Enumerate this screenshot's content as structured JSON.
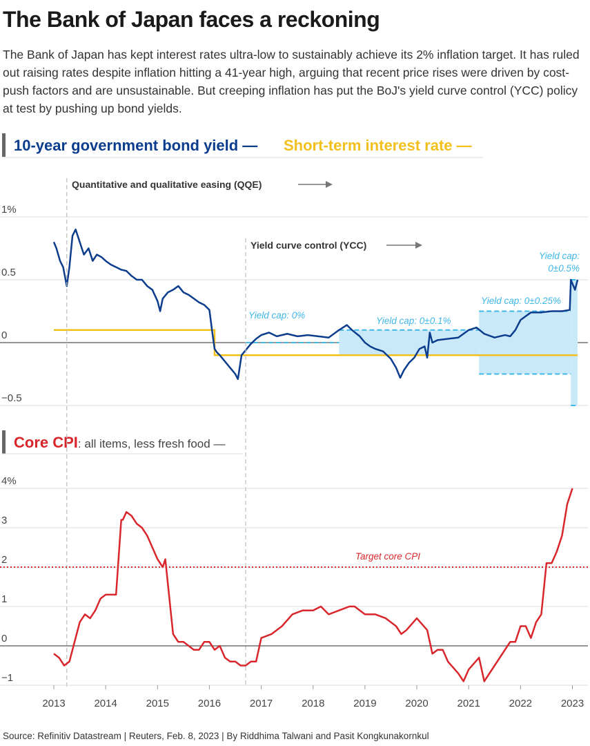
{
  "title": "The Bank of Japan faces a reckoning",
  "intro": "The Bank of Japan has kept interest rates ultra-low to sustainably achieve its 2% inflation target. It has ruled out raising rates despite inflation hitting a 41-year high, arguing that recent price rises were driven by cost-push factors and are unsustainable. But creeping inflation has put the BoJ's yield curve control (YCC) policy at test by pushing up bond yields.",
  "source": "Source: Refinitiv Datastream | Reuters, Feb. 8, 2023 | By Riddhima Talwani and Pasit Kongkunakornkul",
  "colors": {
    "bond": "#0c3c8c",
    "rate": "#f2c01c",
    "cpi": "#d9262c",
    "cap_fill": "#c9e9f8",
    "cap_line": "#3fb7e8",
    "grid": "#dddddd",
    "zero": "#555555",
    "accent_bar": "#666666"
  },
  "legend_top": {
    "bond_label": "10-year government bond yield —",
    "rate_label": "Short-term interest rate —"
  },
  "legend_bottom": {
    "cpi_label": "Core CPI",
    "cpi_suffix": ": all items, less fresh food —"
  },
  "annotations": {
    "qqe": "Quantitative and qualitative easing (QQE)",
    "ycc": "Yield curve control (YCC)",
    "cap0": "Yield cap: 0%",
    "cap01": "Yield cap: 0±0.1%",
    "cap025": "Yield cap: 0±0.25%",
    "cap05_line1": "Yield cap:",
    "cap05_line2": "0±0.5%",
    "target": "Target core CPI"
  },
  "chart_data": [
    {
      "type": "line",
      "title": "10-year government bond yield and short-term interest rate",
      "xlabel": "",
      "ylabel": "%",
      "xlim": [
        2013.0,
        2023.15
      ],
      "ylim": [
        -0.5,
        1.0
      ],
      "yticks": [
        1,
        0.5,
        0,
        -0.5
      ],
      "ytick_labels": [
        "1%",
        "0.5",
        "0",
        "−0.5"
      ],
      "events": [
        {
          "name": "QQE",
          "x": 2013.25
        },
        {
          "name": "YCC",
          "x": 2016.7
        }
      ],
      "series": [
        {
          "name": "10-year government bond yield",
          "x": [
            2013.0,
            2013.05,
            2013.12,
            2013.18,
            2013.25,
            2013.3,
            2013.36,
            2013.42,
            2013.5,
            2013.58,
            2013.67,
            2013.75,
            2013.83,
            2013.92,
            2014.0,
            2014.1,
            2014.2,
            2014.3,
            2014.4,
            2014.5,
            2014.6,
            2014.7,
            2014.8,
            2014.9,
            2015.0,
            2015.05,
            2015.1,
            2015.2,
            2015.3,
            2015.4,
            2015.5,
            2015.6,
            2015.7,
            2015.8,
            2015.9,
            2016.0,
            2016.05,
            2016.1,
            2016.15,
            2016.2,
            2016.3,
            2016.4,
            2016.5,
            2016.55,
            2016.62,
            2016.7,
            2016.8,
            2016.9,
            2017.0,
            2017.15,
            2017.3,
            2017.5,
            2017.7,
            2017.9,
            2018.1,
            2018.3,
            2018.5,
            2018.65,
            2018.75,
            2018.9,
            2019.0,
            2019.1,
            2019.2,
            2019.35,
            2019.5,
            2019.6,
            2019.68,
            2019.75,
            2019.85,
            2019.95,
            2020.05,
            2020.15,
            2020.2,
            2020.25,
            2020.3,
            2020.4,
            2020.6,
            2020.8,
            2021.0,
            2021.15,
            2021.3,
            2021.5,
            2021.7,
            2021.8,
            2021.9,
            2022.0,
            2022.2,
            2022.4,
            2022.6,
            2022.8,
            2022.95,
            2022.97,
            2023.05,
            2023.1
          ],
          "values": [
            0.8,
            0.75,
            0.65,
            0.6,
            0.45,
            0.6,
            0.85,
            0.9,
            0.8,
            0.7,
            0.75,
            0.65,
            0.7,
            0.68,
            0.65,
            0.62,
            0.6,
            0.58,
            0.57,
            0.53,
            0.5,
            0.5,
            0.45,
            0.42,
            0.33,
            0.25,
            0.35,
            0.4,
            0.42,
            0.45,
            0.4,
            0.38,
            0.35,
            0.32,
            0.3,
            0.26,
            0.1,
            -0.05,
            -0.08,
            -0.1,
            -0.15,
            -0.2,
            -0.25,
            -0.29,
            -0.1,
            -0.06,
            -0.01,
            0.03,
            0.06,
            0.08,
            0.05,
            0.07,
            0.05,
            0.06,
            0.05,
            0.04,
            0.1,
            0.14,
            0.1,
            0.05,
            0.0,
            -0.03,
            -0.05,
            -0.07,
            -0.13,
            -0.2,
            -0.28,
            -0.22,
            -0.16,
            -0.12,
            -0.05,
            -0.03,
            -0.12,
            0.08,
            0.0,
            0.02,
            0.03,
            0.04,
            0.1,
            0.12,
            0.07,
            0.04,
            0.06,
            0.05,
            0.1,
            0.18,
            0.24,
            0.24,
            0.25,
            0.25,
            0.26,
            0.5,
            0.42,
            0.5
          ]
        },
        {
          "name": "Short-term interest rate",
          "x": [
            2013.0,
            2016.1,
            2016.1,
            2023.1
          ],
          "values": [
            0.1,
            0.1,
            -0.1,
            -0.1
          ]
        }
      ],
      "yield_caps": [
        {
          "label": "0%",
          "x_start": 2016.7,
          "x_end": 2018.5,
          "low": 0.0,
          "high": 0.0
        },
        {
          "label": "0±0.1%",
          "x_start": 2018.5,
          "x_end": 2021.2,
          "low": -0.1,
          "high": 0.1
        },
        {
          "label": "0±0.25%",
          "x_start": 2021.2,
          "x_end": 2022.97,
          "low": -0.25,
          "high": 0.25
        },
        {
          "label": "0±0.5%",
          "x_start": 2022.97,
          "x_end": 2023.1,
          "low": -0.5,
          "high": 0.5
        }
      ]
    },
    {
      "type": "line",
      "title": "Core CPI: all items, less fresh food",
      "xlabel": "",
      "ylabel": "%",
      "xlim": [
        2013.0,
        2023.15
      ],
      "ylim": [
        -1,
        4
      ],
      "yticks": [
        4,
        3,
        2,
        1,
        0,
        -1
      ],
      "ytick_labels": [
        "4%",
        "3",
        "2",
        "1",
        "0",
        "−1"
      ],
      "xticks": [
        2013,
        2014,
        2015,
        2016,
        2017,
        2018,
        2019,
        2020,
        2021,
        2022,
        2023
      ],
      "xtick_labels": [
        "2013",
        "2014",
        "2015",
        "2016",
        "2017",
        "2018",
        "2019",
        "2020",
        "2021",
        "2022",
        "2023"
      ],
      "target": 2.0,
      "series": [
        {
          "name": "Core CPI",
          "x": [
            2013.0,
            2013.1,
            2013.2,
            2013.3,
            2013.4,
            2013.5,
            2013.6,
            2013.7,
            2013.8,
            2013.9,
            2014.0,
            2014.1,
            2014.2,
            2014.3,
            2014.33,
            2014.4,
            2014.5,
            2014.6,
            2014.7,
            2014.8,
            2014.9,
            2015.0,
            2015.1,
            2015.15,
            2015.3,
            2015.4,
            2015.5,
            2015.6,
            2015.7,
            2015.8,
            2015.9,
            2016.0,
            2016.1,
            2016.2,
            2016.3,
            2016.4,
            2016.5,
            2016.6,
            2016.7,
            2016.8,
            2016.9,
            2017.0,
            2017.2,
            2017.4,
            2017.6,
            2017.8,
            2018.0,
            2018.15,
            2018.3,
            2018.5,
            2018.7,
            2018.8,
            2019.0,
            2019.2,
            2019.4,
            2019.6,
            2019.7,
            2019.8,
            2020.0,
            2020.2,
            2020.3,
            2020.4,
            2020.5,
            2020.6,
            2020.8,
            2020.9,
            2021.0,
            2021.2,
            2021.3,
            2021.5,
            2021.7,
            2021.8,
            2021.9,
            2022.0,
            2022.1,
            2022.2,
            2022.3,
            2022.4,
            2022.5,
            2022.6,
            2022.7,
            2022.8,
            2022.9,
            2023.0
          ],
          "values": [
            -0.2,
            -0.3,
            -0.5,
            -0.4,
            0.1,
            0.6,
            0.8,
            0.7,
            0.9,
            1.2,
            1.3,
            1.3,
            1.3,
            3.2,
            3.2,
            3.4,
            3.3,
            3.1,
            3.0,
            2.8,
            2.5,
            2.2,
            2.0,
            2.2,
            0.3,
            0.1,
            0.1,
            0.0,
            -0.1,
            -0.1,
            0.1,
            0.1,
            -0.1,
            0.0,
            -0.3,
            -0.4,
            -0.4,
            -0.5,
            -0.5,
            -0.4,
            -0.4,
            0.2,
            0.3,
            0.5,
            0.8,
            0.9,
            0.9,
            1.0,
            0.8,
            0.9,
            1.0,
            1.0,
            0.8,
            0.8,
            0.7,
            0.5,
            0.3,
            0.4,
            0.7,
            0.4,
            -0.2,
            -0.1,
            -0.1,
            -0.4,
            -0.7,
            -0.9,
            -0.6,
            -0.3,
            -0.9,
            -0.5,
            -0.1,
            0.1,
            0.1,
            0.5,
            0.5,
            0.2,
            0.6,
            0.8,
            2.1,
            2.1,
            2.4,
            2.8,
            3.6,
            4.0
          ]
        }
      ]
    }
  ]
}
